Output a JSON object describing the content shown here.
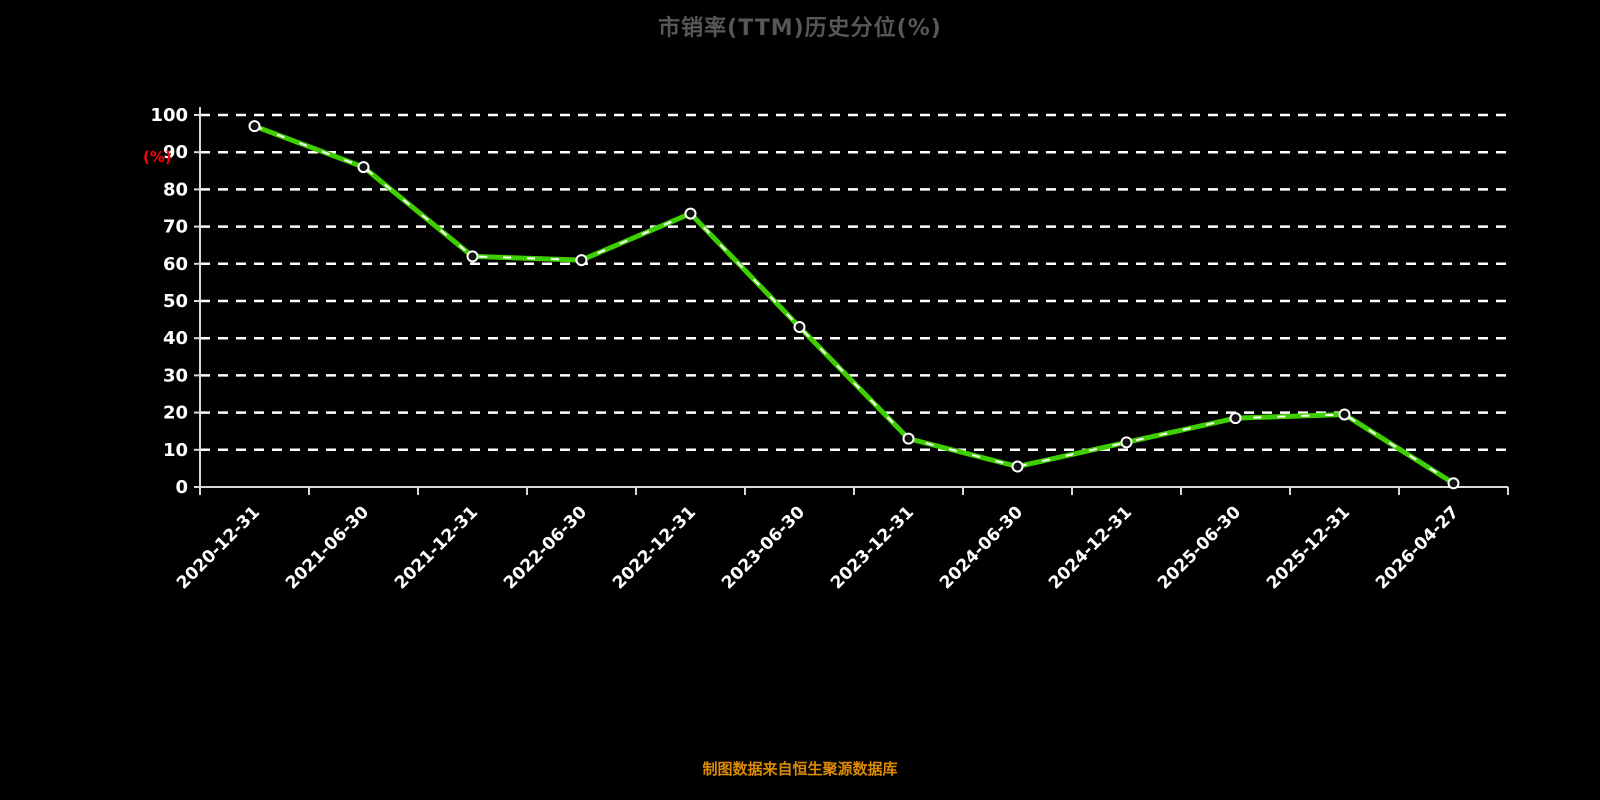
{
  "title": "市销率(TTM)历史分位(%)",
  "footer": "制图数据来自恒生聚源数据库",
  "chart_data": {
    "type": "line",
    "title": "市销率(TTM)历史分位(%)",
    "xlabel": "",
    "ylabel": "(%)",
    "ylim": [
      0,
      100
    ],
    "ytick_interval": 10,
    "grid": true,
    "legend_position": "none",
    "categories": [
      "2020-12-31",
      "2021-06-30",
      "2021-12-31",
      "2022-06-30",
      "2022-12-31",
      "2023-06-30",
      "2023-12-31",
      "2024-06-30",
      "2024-12-31",
      "2025-06-30",
      "2025-12-31",
      "2026-04-27"
    ],
    "series": [
      {
        "name": "市销率(TTM)历史分位(%)",
        "values": [
          97,
          86,
          62,
          61,
          73.5,
          43,
          13,
          5.5,
          12,
          18.5,
          19.5,
          1
        ]
      }
    ],
    "colors": {
      "background": "#000000",
      "line": "#3fcf00",
      "line_dash_overlay": "#ffffff",
      "marker_fill": "#111111",
      "marker_ring": "#ffffff",
      "grid": "#ffffff",
      "axis": "#d9d9d9",
      "tick_text": "#ffffff",
      "title_text": "#575757",
      "ylabel_text": "#ff0000",
      "footer_text": "#dc8a00"
    }
  }
}
